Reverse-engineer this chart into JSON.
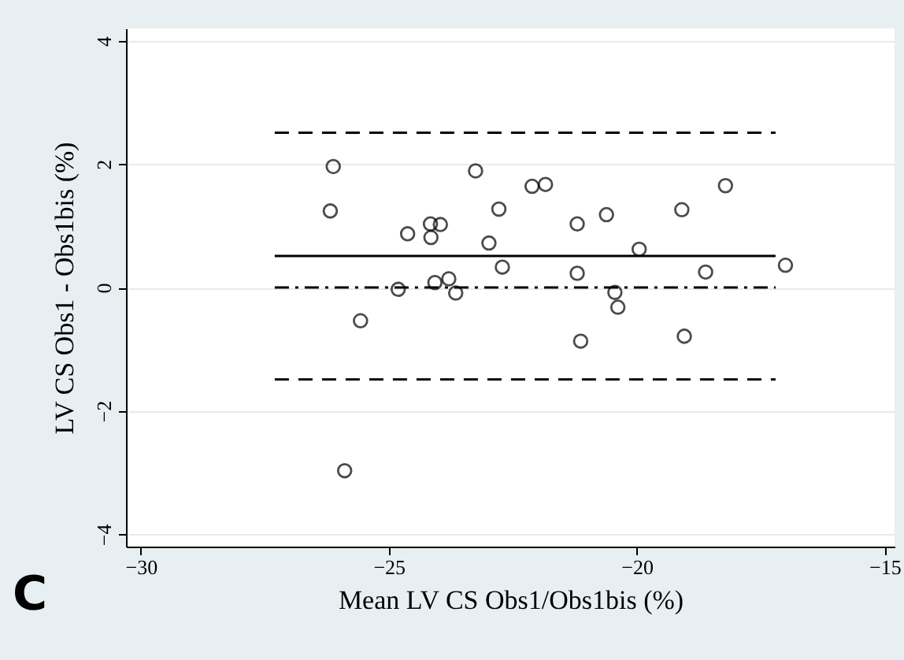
{
  "chart_data": {
    "type": "scatter",
    "xlabel": "Mean LV CS Obs1/Obs1bis (%)",
    "ylabel": "LV CS Obs1 - Obs1bis (%)",
    "xlim": [
      -30.3,
      -14.8
    ],
    "xticks": [
      -30,
      -25,
      -20,
      -15
    ],
    "ylim": [
      -4.2,
      4.2
    ],
    "yticks": [
      -4,
      -2,
      0,
      2,
      4
    ],
    "grid": "y",
    "marker": "circle",
    "annotations": [
      "C"
    ],
    "series": [
      {
        "color": "#000000",
        "x": [
          -26.12,
          -26.18,
          -24.62,
          -24.16,
          -23.96,
          -24.15,
          -23.25,
          -22.98,
          -22.78,
          -22.71,
          -24.81,
          -24.07,
          -23.79,
          -23.65,
          -25.57,
          -25.89,
          -22.11,
          -21.84,
          -21.2,
          -20.61,
          -21.2,
          -19.95,
          -20.44,
          -20.38,
          -21.13,
          -19.09,
          -18.21,
          -18.61,
          -19.04,
          -17.0
        ],
        "values": [
          1.96,
          1.24,
          0.87,
          1.03,
          1.02,
          0.81,
          1.89,
          0.72,
          1.27,
          0.33,
          -0.03,
          0.08,
          0.14,
          -0.09,
          -0.54,
          -2.97,
          1.64,
          1.67,
          1.03,
          1.18,
          0.23,
          0.62,
          -0.08,
          -0.32,
          -0.87,
          1.26,
          1.65,
          0.25,
          -0.79,
          0.36
        ]
      },
      {
        "type": "line",
        "color": "#000000",
        "line_style": "dashed",
        "marker": "none",
        "x": [
          -27.3,
          -17.2
        ],
        "values": [
          2.51,
          2.51
        ]
      },
      {
        "type": "line",
        "color": "#000000",
        "line_style": "solid",
        "marker": "none",
        "x": [
          -27.3,
          -17.2
        ],
        "values": [
          0.51,
          0.51
        ]
      },
      {
        "type": "line",
        "color": "#000000",
        "line_style": "dashdot",
        "marker": "none",
        "x": [
          -27.3,
          -17.2
        ],
        "values": [
          0,
          0
        ]
      },
      {
        "type": "line",
        "color": "#000000",
        "line_style": "dashed",
        "marker": "none",
        "x": [
          -27.3,
          -17.2
        ],
        "values": [
          -1.49,
          -1.49
        ]
      }
    ]
  }
}
